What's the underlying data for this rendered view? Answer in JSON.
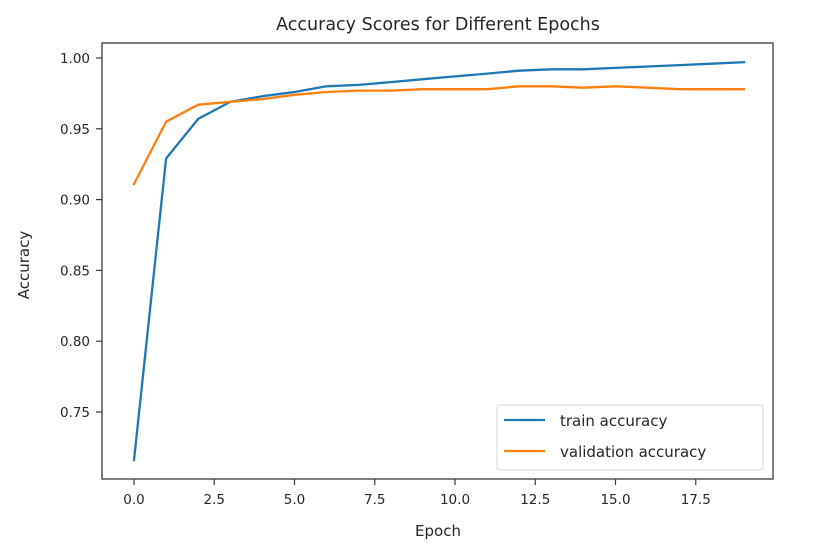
{
  "chart_data": {
    "type": "line",
    "title": "Accuracy Scores for Different Epochs",
    "xlabel": "Epoch",
    "ylabel": "Accuracy",
    "x": [
      0,
      1,
      2,
      3,
      4,
      5,
      6,
      7,
      8,
      9,
      10,
      11,
      12,
      13,
      14,
      15,
      16,
      17,
      18,
      19
    ],
    "series": [
      {
        "name": "train accuracy",
        "color": "#1f77b4",
        "values": [
          0.716,
          0.929,
          0.957,
          0.969,
          0.973,
          0.976,
          0.98,
          0.981,
          0.983,
          0.985,
          0.987,
          0.989,
          0.991,
          0.992,
          0.992,
          0.993,
          0.994,
          0.995,
          0.996,
          0.997
        ]
      },
      {
        "name": "validation accuracy",
        "color": "#ff7f0e",
        "values": [
          0.911,
          0.955,
          0.967,
          0.969,
          0.971,
          0.974,
          0.976,
          0.977,
          0.977,
          0.978,
          0.978,
          0.978,
          0.98,
          0.98,
          0.979,
          0.98,
          0.979,
          0.978,
          0.978,
          0.978
        ]
      }
    ],
    "xticks": [
      "0.0",
      "2.5",
      "5.0",
      "7.5",
      "10.0",
      "12.5",
      "15.0",
      "17.5"
    ],
    "xtick_values": [
      0,
      2.5,
      5,
      7.5,
      10,
      12.5,
      15,
      17.5
    ],
    "yticks": [
      "0.75",
      "0.80",
      "0.85",
      "0.90",
      "0.95",
      "1.00"
    ],
    "ytick_values": [
      0.75,
      0.8,
      0.85,
      0.9,
      0.95,
      1.0
    ],
    "xlim": [
      -0.95,
      19.95
    ],
    "ylim": [
      0.705,
      1.011
    ],
    "grid": false,
    "legend_position": "lower right"
  }
}
